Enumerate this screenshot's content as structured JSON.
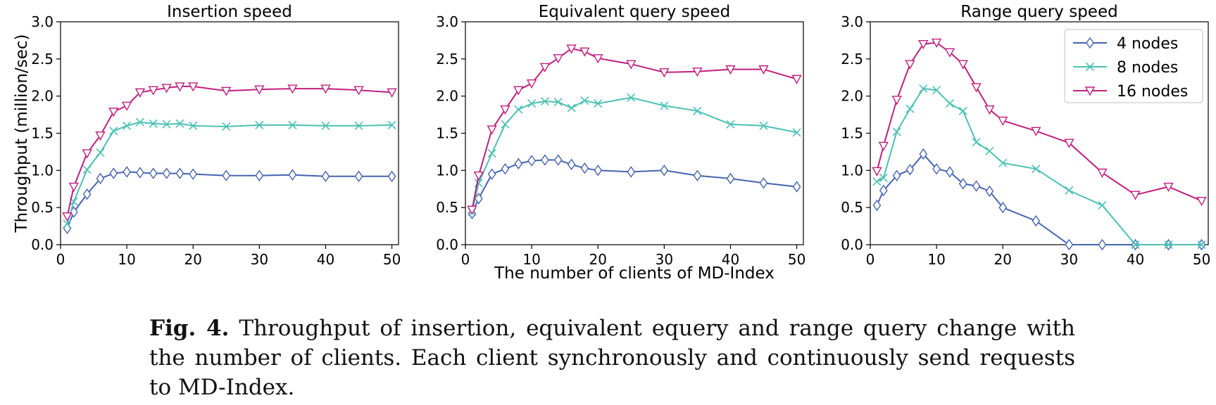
{
  "figure": {
    "caption_label": "Fig. 4.",
    "caption_text": "Throughput of insertion, equivalent equery and range query change with the number of clients. Each client synchronously and continuously send requests to MD-Index.",
    "shared_xlabel": "The number of clients of MD-Index",
    "shared_ylabel": "Throughput (million/sec)"
  },
  "colors": {
    "4 nodes": "#4463b0",
    "8 nodes": "#4cc0b4",
    "16 nodes": "#c01f7f"
  },
  "legend": {
    "placement": "top-right",
    "entries": [
      "4 nodes",
      "8 nodes",
      "16 nodes"
    ]
  },
  "chart_data": [
    {
      "type": "line",
      "title": "Insertion speed",
      "xlabel": "",
      "ylabel": "Throughput (million/sec)",
      "xlim": [
        0,
        51
      ],
      "ylim": [
        0,
        3.0
      ],
      "xticks": [
        0,
        10,
        20,
        30,
        40,
        50
      ],
      "yticks": [
        0.0,
        0.5,
        1.0,
        1.5,
        2.0,
        2.5,
        3.0
      ],
      "grid": false,
      "x": [
        1,
        2,
        4,
        6,
        8,
        10,
        12,
        14,
        16,
        18,
        20,
        25,
        30,
        35,
        40,
        45,
        50
      ],
      "series": [
        {
          "name": "4 nodes",
          "marker": "diamond",
          "values": [
            0.22,
            0.44,
            0.68,
            0.89,
            0.96,
            0.98,
            0.97,
            0.96,
            0.96,
            0.96,
            0.95,
            0.93,
            0.93,
            0.94,
            0.92,
            0.92,
            0.92
          ]
        },
        {
          "name": "8 nodes",
          "marker": "x",
          "values": [
            0.28,
            0.58,
            1.01,
            1.24,
            1.53,
            1.6,
            1.65,
            1.63,
            1.62,
            1.63,
            1.6,
            1.59,
            1.61,
            1.61,
            1.6,
            1.6,
            1.61
          ]
        },
        {
          "name": "16 nodes",
          "marker": "triangle-down",
          "values": [
            0.38,
            0.78,
            1.23,
            1.47,
            1.79,
            1.87,
            2.05,
            2.08,
            2.11,
            2.13,
            2.13,
            2.07,
            2.09,
            2.1,
            2.1,
            2.08,
            2.05
          ]
        }
      ]
    },
    {
      "type": "line",
      "title": "Equivalent query speed",
      "xlabel": "The number of clients of MD-Index",
      "ylabel": "",
      "xlim": [
        0,
        51
      ],
      "ylim": [
        0,
        3.0
      ],
      "xticks": [
        0,
        10,
        20,
        30,
        40,
        50
      ],
      "yticks": [
        0.0,
        0.5,
        1.0,
        1.5,
        2.0,
        2.5,
        3.0
      ],
      "grid": false,
      "x": [
        1,
        2,
        4,
        6,
        8,
        10,
        12,
        14,
        16,
        18,
        20,
        25,
        30,
        35,
        40,
        45,
        50
      ],
      "series": [
        {
          "name": "4 nodes",
          "marker": "diamond",
          "values": [
            0.42,
            0.62,
            0.95,
            1.02,
            1.09,
            1.13,
            1.14,
            1.14,
            1.08,
            1.03,
            1.0,
            0.98,
            1.0,
            0.93,
            0.89,
            0.83,
            0.78
          ]
        },
        {
          "name": "8 nodes",
          "marker": "x",
          "values": [
            0.44,
            0.83,
            1.23,
            1.62,
            1.82,
            1.9,
            1.93,
            1.92,
            1.84,
            1.94,
            1.9,
            1.98,
            1.87,
            1.8,
            1.62,
            1.6,
            1.51
          ]
        },
        {
          "name": "16 nodes",
          "marker": "triangle-down",
          "values": [
            0.47,
            0.93,
            1.55,
            1.82,
            2.08,
            2.17,
            2.39,
            2.51,
            2.64,
            2.6,
            2.51,
            2.43,
            2.32,
            2.33,
            2.36,
            2.36,
            2.23
          ]
        }
      ]
    },
    {
      "type": "line",
      "title": "Range query speed",
      "xlabel": "",
      "ylabel": "",
      "xlim": [
        0,
        51
      ],
      "ylim": [
        0,
        3.0
      ],
      "xticks": [
        0,
        10,
        20,
        30,
        40,
        50
      ],
      "yticks": [
        0.0,
        0.5,
        1.0,
        1.5,
        2.0,
        2.5,
        3.0
      ],
      "grid": false,
      "x": [
        1,
        2,
        4,
        6,
        8,
        10,
        12,
        14,
        16,
        18,
        20,
        25,
        30,
        35,
        40,
        45,
        50
      ],
      "series": [
        {
          "name": "4 nodes",
          "marker": "diamond",
          "values": [
            0.53,
            0.73,
            0.93,
            1.01,
            1.22,
            1.02,
            0.98,
            0.82,
            0.79,
            0.72,
            0.5,
            0.32,
            0.0,
            0.0,
            0.0,
            0.0,
            0.0
          ]
        },
        {
          "name": "8 nodes",
          "marker": "x",
          "values": [
            0.85,
            0.9,
            1.52,
            1.83,
            2.1,
            2.08,
            1.9,
            1.8,
            1.38,
            1.26,
            1.1,
            1.02,
            0.73,
            0.53,
            0.0,
            0.0,
            0.0
          ]
        },
        {
          "name": "16 nodes",
          "marker": "triangle-down",
          "values": [
            0.99,
            1.33,
            1.95,
            2.43,
            2.7,
            2.72,
            2.59,
            2.43,
            2.12,
            1.82,
            1.67,
            1.53,
            1.37,
            0.97,
            0.67,
            0.78,
            0.59
          ]
        }
      ]
    }
  ]
}
